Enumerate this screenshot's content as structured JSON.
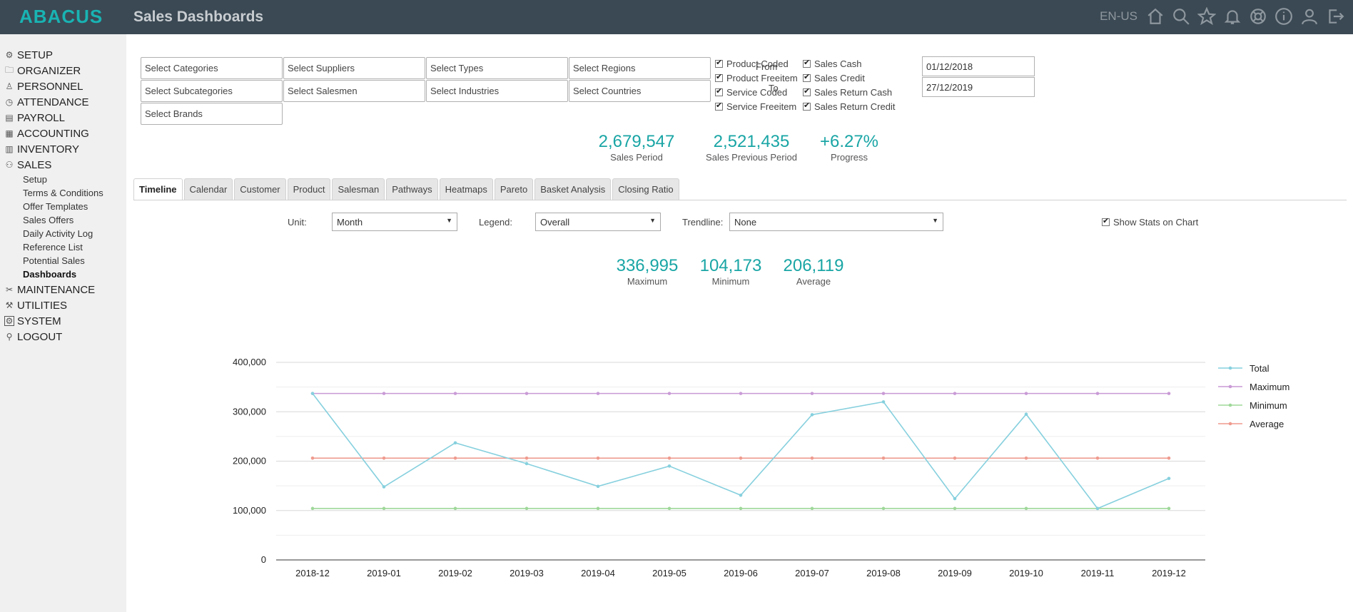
{
  "header": {
    "logo": "ABACUS",
    "title": "Sales Dashboards",
    "lang": "EN-US",
    "icons": [
      "home-icon",
      "search-icon",
      "star-icon",
      "bell-icon",
      "help-lifebuoy-icon",
      "info-icon",
      "user-icon",
      "logout-icon"
    ]
  },
  "sidebar": {
    "items": [
      {
        "label": "SETUP",
        "icon": "gear-icon"
      },
      {
        "label": "ORGANIZER",
        "icon": "folder-icon"
      },
      {
        "label": "PERSONNEL",
        "icon": "person-icon"
      },
      {
        "label": "ATTENDANCE",
        "icon": "clock-icon"
      },
      {
        "label": "PAYROLL",
        "icon": "money-icon"
      },
      {
        "label": "ACCOUNTING",
        "icon": "ledger-icon"
      },
      {
        "label": "INVENTORY",
        "icon": "clipboard-icon"
      },
      {
        "label": "SALES",
        "icon": "people-icon"
      }
    ],
    "sales_sub": [
      "Setup",
      "Terms & Conditions",
      "Offer Templates",
      "Sales Offers",
      "Daily Activity Log",
      "Reference List",
      "Potential Sales",
      "Dashboards"
    ],
    "bottom_items": [
      {
        "label": "MAINTENANCE",
        "icon": "tools-icon"
      },
      {
        "label": "UTILITIES",
        "icon": "wrench-icon"
      },
      {
        "label": "SYSTEM",
        "icon": "system-gear-icon"
      },
      {
        "label": "LOGOUT",
        "icon": "logout-person-icon"
      }
    ]
  },
  "filters": {
    "categories": "Select Categories",
    "suppliers": "Select Suppliers",
    "types": "Select Types",
    "regions": "Select Regions",
    "subcategories": "Select Subcategories",
    "salesmen": "Select Salesmen",
    "industries": "Select Industries",
    "countries": "Select Countries",
    "brands": "Select Brands"
  },
  "checks": {
    "product_coded": "Product Coded",
    "product_freeitem": "Product Freeitem",
    "service_coded": "Service Coded",
    "service_freeitem": "Service Freeitem",
    "sales_cash": "Sales Cash",
    "sales_credit": "Sales Credit",
    "sales_return_cash": "Sales Return Cash",
    "sales_return_credit": "Sales Return Credit"
  },
  "dates": {
    "from_label": "From",
    "from_value": "01/12/2018",
    "to_label": "To",
    "to_value": "27/12/2019"
  },
  "summary": {
    "sales_period": {
      "value": "2,679,547",
      "label": "Sales Period"
    },
    "prev_period": {
      "value": "2,521,435",
      "label": "Sales Previous Period"
    },
    "progress": {
      "value": "+6.27%",
      "label": "Progress"
    }
  },
  "tabs": [
    "Timeline",
    "Calendar",
    "Customer",
    "Product",
    "Salesman",
    "Pathways",
    "Heatmaps",
    "Pareto",
    "Basket Analysis",
    "Closing Ratio"
  ],
  "controls": {
    "unit_label": "Unit:",
    "unit_value": "Month",
    "legend_label": "Legend:",
    "legend_value": "Overall",
    "trendline_label": "Trendline:",
    "trendline_value": "None",
    "show_stats": "Show Stats on Chart"
  },
  "stats": {
    "maximum": {
      "value": "336,995",
      "label": "Maximum"
    },
    "minimum": {
      "value": "104,173",
      "label": "Minimum"
    },
    "average": {
      "value": "206,119",
      "label": "Average"
    }
  },
  "chart_data": {
    "type": "line",
    "title": "",
    "xlabel": "",
    "ylabel": "",
    "x": [
      "2018-12",
      "2019-01",
      "2019-02",
      "2019-03",
      "2019-04",
      "2019-05",
      "2019-06",
      "2019-07",
      "2019-08",
      "2019-09",
      "2019-10",
      "2019-11",
      "2019-12"
    ],
    "ylim": [
      0,
      400000
    ],
    "yticks": [
      0,
      100000,
      200000,
      300000,
      400000
    ],
    "ytick_labels": [
      "0",
      "100,000",
      "200,000",
      "300,000",
      "400,000"
    ],
    "grid": true,
    "legend_position": "right",
    "series": [
      {
        "name": "Total",
        "color": "#86d0de",
        "values": [
          336995,
          148000,
          237000,
          195000,
          149000,
          190000,
          131000,
          294000,
          320000,
          124000,
          295000,
          104173,
          165000
        ]
      },
      {
        "name": "Maximum",
        "color": "#c99ad6",
        "values": [
          336995,
          336995,
          336995,
          336995,
          336995,
          336995,
          336995,
          336995,
          336995,
          336995,
          336995,
          336995,
          336995
        ]
      },
      {
        "name": "Minimum",
        "color": "#9fd89a",
        "values": [
          104173,
          104173,
          104173,
          104173,
          104173,
          104173,
          104173,
          104173,
          104173,
          104173,
          104173,
          104173,
          104173
        ]
      },
      {
        "name": "Average",
        "color": "#ef9a8e",
        "values": [
          206119,
          206119,
          206119,
          206119,
          206119,
          206119,
          206119,
          206119,
          206119,
          206119,
          206119,
          206119,
          206119
        ]
      }
    ]
  }
}
